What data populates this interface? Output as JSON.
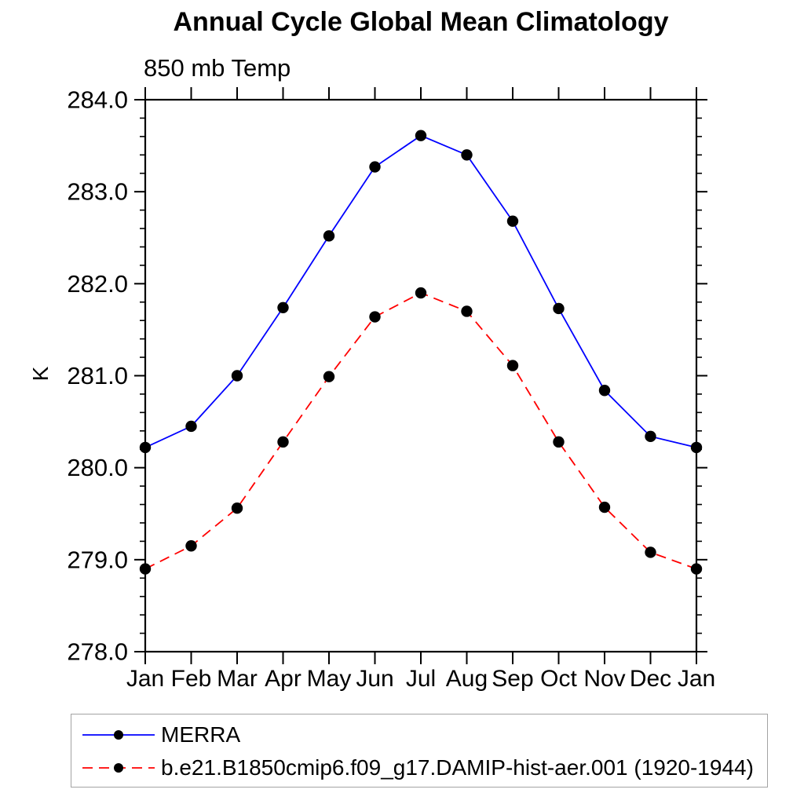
{
  "chart_data": {
    "type": "line",
    "title": "Annual Cycle Global Mean Climatology",
    "subtitle": "850 mb Temp",
    "ylabel": "K",
    "xlabel": "",
    "categories": [
      "Jan",
      "Feb",
      "Mar",
      "Apr",
      "May",
      "Jun",
      "Jul",
      "Aug",
      "Sep",
      "Oct",
      "Nov",
      "Dec",
      "Jan"
    ],
    "ylim": [
      278.0,
      284.0
    ],
    "y_major_step": 1.0,
    "y_minor_step": 0.2,
    "y_ticklabels": [
      "278.0",
      "279.0",
      "280.0",
      "281.0",
      "282.0",
      "283.0",
      "284.0"
    ],
    "grid": false,
    "legend_position": "bottom-left-box",
    "axis_color": "#000000",
    "marker_shape": "filled-circle",
    "series": [
      {
        "name": "MERRA",
        "color": "#0000ff",
        "line_style": "solid",
        "marker_color": "#000000",
        "values": [
          280.22,
          280.45,
          281.0,
          281.74,
          282.52,
          283.27,
          283.61,
          283.4,
          282.68,
          281.73,
          280.84,
          280.34,
          280.22
        ]
      },
      {
        "name": "b.e21.B1850cmip6.f09_g17.DAMIP-hist-aer.001 (1920-1944)",
        "color": "#ff0000",
        "line_style": "dashed",
        "marker_color": "#000000",
        "values": [
          278.9,
          279.15,
          279.56,
          280.28,
          280.99,
          281.64,
          281.9,
          281.7,
          281.11,
          280.28,
          279.57,
          279.08,
          278.9
        ]
      }
    ]
  }
}
